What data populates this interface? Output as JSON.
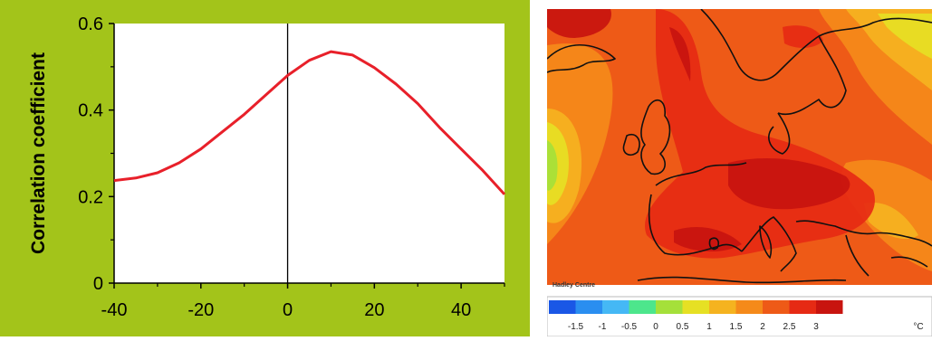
{
  "chart_data": [
    {
      "type": "line",
      "ylabel": "Correlation coefficient",
      "xlabel": "",
      "xlim": [
        -40,
        50
      ],
      "ylim": [
        0,
        0.6
      ],
      "x_ticks": [
        "-40",
        "-20",
        "0",
        "20",
        "40"
      ],
      "y_ticks": [
        "0",
        "0.2",
        "0.4",
        "0.6"
      ],
      "reference_line_x": 0,
      "series": [
        {
          "color": "#e8202a",
          "x": [
            -40,
            -35,
            -30,
            -25,
            -20,
            -15,
            -10,
            -5,
            0,
            5,
            10,
            15,
            20,
            25,
            30,
            35,
            40,
            45,
            50
          ],
          "y": [
            0.237,
            0.243,
            0.255,
            0.278,
            0.31,
            0.35,
            0.39,
            0.435,
            0.48,
            0.515,
            0.535,
            0.527,
            0.498,
            0.46,
            0.415,
            0.36,
            0.31,
            0.26,
            0.205
          ]
        }
      ],
      "background_color": "#a3c41a",
      "plot_background": "#ffffff"
    },
    {
      "type": "heatmap",
      "title": "",
      "credit": "Hadley Centre",
      "unit": "°C",
      "colorbar_labels": [
        "-1.5",
        "-1",
        "-0.5",
        "0",
        "0.5",
        "1",
        "1.5",
        "2",
        "2.5",
        "3"
      ],
      "colorbar_colors": [
        "#1a57e6",
        "#2a8ef0",
        "#45b8f5",
        "#4de68c",
        "#a5e03a",
        "#e6e024",
        "#f5b31f",
        "#f58a1a",
        "#ee5a17",
        "#e62a14",
        "#c8140f"
      ]
    }
  ]
}
